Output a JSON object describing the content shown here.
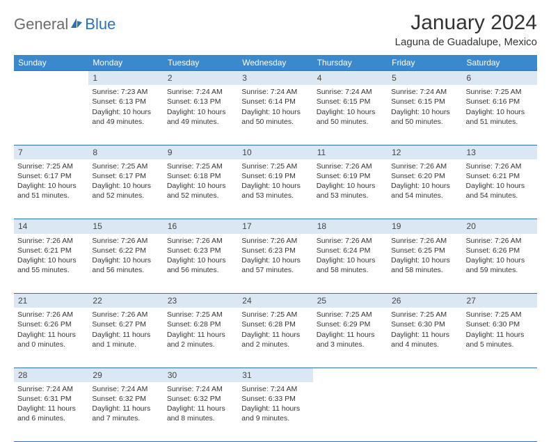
{
  "logo": {
    "textGeneral": "General",
    "textBlue": "Blue"
  },
  "title": "January 2024",
  "location": "Laguna de Guadalupe, Mexico",
  "colors": {
    "headerBg": "#3a89cc",
    "dayBg": "#dbe7f2",
    "border": "#2a71b8",
    "logoGray": "#6b6b6b",
    "logoBlue": "#2a71b8",
    "text": "#333333",
    "white": "#ffffff"
  },
  "weekdays": [
    "Sunday",
    "Monday",
    "Tuesday",
    "Wednesday",
    "Thursday",
    "Friday",
    "Saturday"
  ],
  "weeks": [
    {
      "nums": [
        "",
        "1",
        "2",
        "3",
        "4",
        "5",
        "6"
      ],
      "cells": [
        null,
        {
          "sr": "Sunrise: 7:23 AM",
          "ss": "Sunset: 6:13 PM",
          "dl": "Daylight: 10 hours and 49 minutes."
        },
        {
          "sr": "Sunrise: 7:24 AM",
          "ss": "Sunset: 6:13 PM",
          "dl": "Daylight: 10 hours and 49 minutes."
        },
        {
          "sr": "Sunrise: 7:24 AM",
          "ss": "Sunset: 6:14 PM",
          "dl": "Daylight: 10 hours and 50 minutes."
        },
        {
          "sr": "Sunrise: 7:24 AM",
          "ss": "Sunset: 6:15 PM",
          "dl": "Daylight: 10 hours and 50 minutes."
        },
        {
          "sr": "Sunrise: 7:24 AM",
          "ss": "Sunset: 6:15 PM",
          "dl": "Daylight: 10 hours and 50 minutes."
        },
        {
          "sr": "Sunrise: 7:25 AM",
          "ss": "Sunset: 6:16 PM",
          "dl": "Daylight: 10 hours and 51 minutes."
        }
      ]
    },
    {
      "nums": [
        "7",
        "8",
        "9",
        "10",
        "11",
        "12",
        "13"
      ],
      "cells": [
        {
          "sr": "Sunrise: 7:25 AM",
          "ss": "Sunset: 6:17 PM",
          "dl": "Daylight: 10 hours and 51 minutes."
        },
        {
          "sr": "Sunrise: 7:25 AM",
          "ss": "Sunset: 6:17 PM",
          "dl": "Daylight: 10 hours and 52 minutes."
        },
        {
          "sr": "Sunrise: 7:25 AM",
          "ss": "Sunset: 6:18 PM",
          "dl": "Daylight: 10 hours and 52 minutes."
        },
        {
          "sr": "Sunrise: 7:25 AM",
          "ss": "Sunset: 6:19 PM",
          "dl": "Daylight: 10 hours and 53 minutes."
        },
        {
          "sr": "Sunrise: 7:26 AM",
          "ss": "Sunset: 6:19 PM",
          "dl": "Daylight: 10 hours and 53 minutes."
        },
        {
          "sr": "Sunrise: 7:26 AM",
          "ss": "Sunset: 6:20 PM",
          "dl": "Daylight: 10 hours and 54 minutes."
        },
        {
          "sr": "Sunrise: 7:26 AM",
          "ss": "Sunset: 6:21 PM",
          "dl": "Daylight: 10 hours and 54 minutes."
        }
      ]
    },
    {
      "nums": [
        "14",
        "15",
        "16",
        "17",
        "18",
        "19",
        "20"
      ],
      "cells": [
        {
          "sr": "Sunrise: 7:26 AM",
          "ss": "Sunset: 6:21 PM",
          "dl": "Daylight: 10 hours and 55 minutes."
        },
        {
          "sr": "Sunrise: 7:26 AM",
          "ss": "Sunset: 6:22 PM",
          "dl": "Daylight: 10 hours and 56 minutes."
        },
        {
          "sr": "Sunrise: 7:26 AM",
          "ss": "Sunset: 6:23 PM",
          "dl": "Daylight: 10 hours and 56 minutes."
        },
        {
          "sr": "Sunrise: 7:26 AM",
          "ss": "Sunset: 6:23 PM",
          "dl": "Daylight: 10 hours and 57 minutes."
        },
        {
          "sr": "Sunrise: 7:26 AM",
          "ss": "Sunset: 6:24 PM",
          "dl": "Daylight: 10 hours and 58 minutes."
        },
        {
          "sr": "Sunrise: 7:26 AM",
          "ss": "Sunset: 6:25 PM",
          "dl": "Daylight: 10 hours and 58 minutes."
        },
        {
          "sr": "Sunrise: 7:26 AM",
          "ss": "Sunset: 6:26 PM",
          "dl": "Daylight: 10 hours and 59 minutes."
        }
      ]
    },
    {
      "nums": [
        "21",
        "22",
        "23",
        "24",
        "25",
        "26",
        "27"
      ],
      "cells": [
        {
          "sr": "Sunrise: 7:26 AM",
          "ss": "Sunset: 6:26 PM",
          "dl": "Daylight: 11 hours and 0 minutes."
        },
        {
          "sr": "Sunrise: 7:26 AM",
          "ss": "Sunset: 6:27 PM",
          "dl": "Daylight: 11 hours and 1 minute."
        },
        {
          "sr": "Sunrise: 7:25 AM",
          "ss": "Sunset: 6:28 PM",
          "dl": "Daylight: 11 hours and 2 minutes."
        },
        {
          "sr": "Sunrise: 7:25 AM",
          "ss": "Sunset: 6:28 PM",
          "dl": "Daylight: 11 hours and 2 minutes."
        },
        {
          "sr": "Sunrise: 7:25 AM",
          "ss": "Sunset: 6:29 PM",
          "dl": "Daylight: 11 hours and 3 minutes."
        },
        {
          "sr": "Sunrise: 7:25 AM",
          "ss": "Sunset: 6:30 PM",
          "dl": "Daylight: 11 hours and 4 minutes."
        },
        {
          "sr": "Sunrise: 7:25 AM",
          "ss": "Sunset: 6:30 PM",
          "dl": "Daylight: 11 hours and 5 minutes."
        }
      ]
    },
    {
      "nums": [
        "28",
        "29",
        "30",
        "31",
        "",
        "",
        ""
      ],
      "cells": [
        {
          "sr": "Sunrise: 7:24 AM",
          "ss": "Sunset: 6:31 PM",
          "dl": "Daylight: 11 hours and 6 minutes."
        },
        {
          "sr": "Sunrise: 7:24 AM",
          "ss": "Sunset: 6:32 PM",
          "dl": "Daylight: 11 hours and 7 minutes."
        },
        {
          "sr": "Sunrise: 7:24 AM",
          "ss": "Sunset: 6:32 PM",
          "dl": "Daylight: 11 hours and 8 minutes."
        },
        {
          "sr": "Sunrise: 7:24 AM",
          "ss": "Sunset: 6:33 PM",
          "dl": "Daylight: 11 hours and 9 minutes."
        },
        null,
        null,
        null
      ]
    }
  ]
}
